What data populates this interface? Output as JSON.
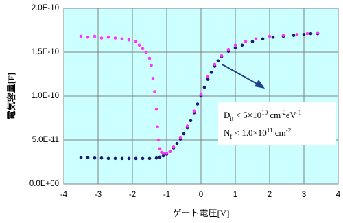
{
  "chart_data": {
    "type": "scatter",
    "x_label": "ゲート電圧[V]",
    "y_label": "電気容量[F]",
    "xlim": [
      -4,
      4
    ],
    "xticks": [
      -4,
      -3,
      -2,
      -1,
      0,
      1,
      2,
      3,
      4
    ],
    "ylim": [
      0,
      2e-10
    ],
    "yticks": [
      {
        "value": 0,
        "label": "0.0E+00"
      },
      {
        "value": 5e-11,
        "label": "5.0E-11"
      },
      {
        "value": 1e-10,
        "label": "1.0E-10"
      },
      {
        "value": 1.5e-10,
        "label": "1.5E-10"
      },
      {
        "value": 2e-10,
        "label": "2.0E-10"
      }
    ],
    "grid": true,
    "background": "#ccffff",
    "series": [
      {
        "color": "#1a1a6e",
        "x": [
          -3.5,
          -3.3,
          -3.1,
          -2.9,
          -2.7,
          -2.5,
          -2.3,
          -2.1,
          -1.9,
          -1.7,
          -1.5,
          -1.3,
          -1.2,
          -1.1,
          -1.0,
          -0.9,
          -0.8,
          -0.7,
          -0.6,
          -0.5,
          -0.4,
          -0.3,
          -0.2,
          -0.1,
          0,
          0.1,
          0.2,
          0.3,
          0.4,
          0.5,
          0.6,
          0.8,
          1.0,
          1.2,
          1.5,
          1.8,
          2.1,
          2.4,
          2.7,
          3.0,
          3.2,
          3.4
        ],
        "values": [
          3e-11,
          3e-11,
          2.95e-11,
          2.95e-11,
          2.9e-11,
          2.9e-11,
          2.9e-11,
          2.9e-11,
          2.9e-11,
          2.9e-11,
          2.9e-11,
          2.95e-11,
          3.05e-11,
          3.2e-11,
          3.4e-11,
          3.7e-11,
          4.1e-11,
          4.6e-11,
          5.1e-11,
          5.7e-11,
          6.4e-11,
          7.2e-11,
          8.1e-11,
          9.1e-11,
          1e-10,
          1.1e-10,
          1.19e-10,
          1.27e-10,
          1.34e-10,
          1.4e-10,
          1.45e-10,
          1.51e-10,
          1.55e-10,
          1.58e-10,
          1.62e-10,
          1.65e-10,
          1.67e-10,
          1.68e-10,
          1.69e-10,
          1.7e-10,
          1.71e-10,
          1.71e-10
        ]
      },
      {
        "color": "#ff33ff",
        "x": [
          -3.5,
          -3.3,
          -3.1,
          -2.9,
          -2.7,
          -2.5,
          -2.3,
          -2.1,
          -1.9,
          -1.8,
          -1.7,
          -1.6,
          -1.5,
          -1.45,
          -1.4,
          -1.35,
          -1.3,
          -1.27,
          -1.24,
          -1.2,
          -1.15,
          -1.1,
          -1.0,
          -0.9,
          -0.8,
          -0.6,
          -0.4,
          -0.2,
          0,
          0.2,
          0.4,
          0.6,
          0.8,
          1.0,
          1.3,
          1.6,
          2.0,
          2.4,
          2.8,
          3.1,
          3.4
        ],
        "values": [
          1.68e-10,
          1.67e-10,
          1.68e-10,
          1.66e-10,
          1.67e-10,
          1.66e-10,
          1.65e-10,
          1.64e-10,
          1.62e-10,
          1.58e-10,
          1.54e-10,
          1.5e-10,
          1.43e-10,
          1.35e-10,
          1.2e-10,
          1.05e-10,
          8.5e-11,
          6.5e-11,
          5e-11,
          4e-11,
          3.6e-11,
          3.5e-11,
          3.5e-11,
          3.7e-11,
          4.2e-11,
          5.3e-11,
          6.6e-11,
          8.3e-11,
          1.02e-10,
          1.22e-10,
          1.36e-10,
          1.46e-10,
          1.53e-10,
          1.58e-10,
          1.62e-10,
          1.65e-10,
          1.68e-10,
          1.69e-10,
          1.7e-10,
          1.71e-10,
          1.72e-10
        ]
      }
    ],
    "annotation_lines": [
      [
        {
          "text": "D",
          "pos": "base"
        },
        {
          "text": "it",
          "pos": "sub"
        },
        {
          "text": " < 5×10",
          "pos": "base"
        },
        {
          "text": "10",
          "pos": "sup"
        },
        {
          "text": " cm",
          "pos": "base"
        },
        {
          "text": "-2",
          "pos": "sup"
        },
        {
          "text": "eV",
          "pos": "base"
        },
        {
          "text": "-1",
          "pos": "sup"
        }
      ],
      [
        {
          "text": "N",
          "pos": "base"
        },
        {
          "text": "f",
          "pos": "sub"
        },
        {
          "text": " < 1.0×10",
          "pos": "base"
        },
        {
          "text": "11",
          "pos": "sup"
        },
        {
          "text": " cm",
          "pos": "base"
        },
        {
          "text": "-2",
          "pos": "sup"
        }
      ]
    ]
  }
}
